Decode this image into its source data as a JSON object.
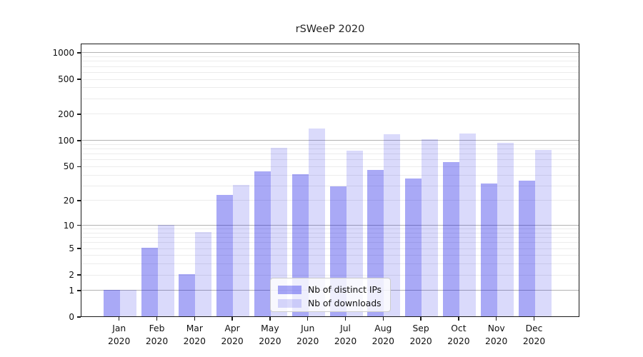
{
  "title": "rSWeeP 2020",
  "chart_data": {
    "type": "bar",
    "title": "rSWeeP 2020",
    "xlabel": "",
    "ylabel": "",
    "categories": [
      "Jan 2020",
      "Feb 2020",
      "Mar 2020",
      "Apr 2020",
      "May 2020",
      "Jun 2020",
      "Jul 2020",
      "Aug 2020",
      "Sep 2020",
      "Oct 2020",
      "Nov 2020",
      "Dec 2020"
    ],
    "series": [
      {
        "name": "Nb of distinct IPs",
        "fill": "rgba(10,10,230,0.35)",
        "hex_on_white": "#a9a9f6",
        "values": [
          1,
          5,
          2,
          23,
          43,
          40,
          29,
          45,
          36,
          55,
          31,
          34
        ]
      },
      {
        "name": "Nb of downloads",
        "fill": "rgba(10,10,230,0.15)",
        "hex_on_white": "#dadafb",
        "values": [
          1,
          10,
          8,
          30,
          81,
          136,
          75,
          116,
          102,
          119,
          93,
          77
        ]
      }
    ],
    "yscale": "log10(value+1)",
    "yticks": [
      0,
      1,
      2,
      5,
      10,
      20,
      50,
      100,
      200,
      500,
      1000
    ],
    "ylim": [
      0,
      1260
    ],
    "major_gridlines": [
      1,
      10,
      100,
      1000
    ],
    "minor_gridlines": [
      2,
      3,
      4,
      5,
      6,
      7,
      8,
      9,
      20,
      30,
      40,
      50,
      60,
      70,
      80,
      90,
      200,
      300,
      400,
      500,
      600,
      700,
      800,
      900
    ],
    "grid": "horizontal only",
    "legend_position": "lower center, inside plot",
    "colors": {
      "major_grid": "#b3b3b3",
      "minor_grid": "#ececec",
      "axis": "#1a1a1a",
      "text": "#111111"
    }
  },
  "legend": {
    "items": [
      {
        "label": "Nb of distinct IPs"
      },
      {
        "label": "Nb of downloads"
      }
    ]
  }
}
